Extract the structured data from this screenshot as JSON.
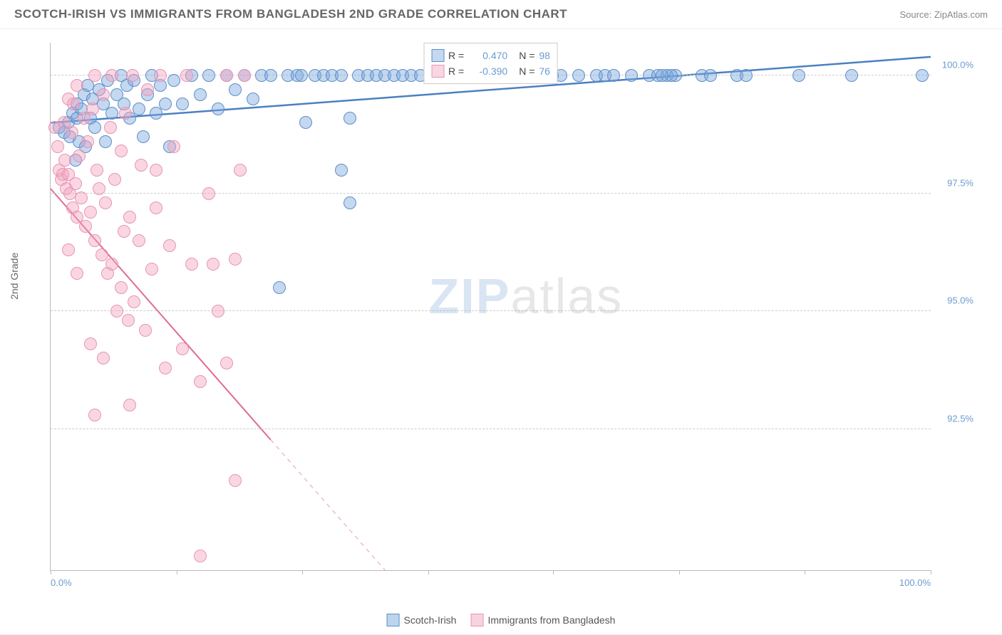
{
  "header": {
    "title": "SCOTCH-IRISH VS IMMIGRANTS FROM BANGLADESH 2ND GRADE CORRELATION CHART",
    "source_label": "Source: ZipAtlas.com"
  },
  "chart": {
    "type": "scatter",
    "ylabel": "2nd Grade",
    "xlim": [
      0,
      100
    ],
    "ylim": [
      89.5,
      100.7
    ],
    "xtick_positions": [
      0,
      14.3,
      28.6,
      42.9,
      57.1,
      71.4,
      85.7,
      100
    ],
    "xtick_labels_shown": {
      "0": "0.0%",
      "100": "100.0%"
    },
    "ytick_positions": [
      92.5,
      95.0,
      97.5,
      100.0
    ],
    "ytick_labels": [
      "92.5%",
      "95.0%",
      "97.5%",
      "100.0%"
    ],
    "background_color": "#ffffff",
    "grid_color": "#cccccc",
    "axis_color": "#bbbbbb",
    "label_color": "#6b9bd1",
    "point_radius": 9,
    "series": [
      {
        "name": "Scotch-Irish",
        "color_fill": "rgba(124,169,221,0.45)",
        "color_stroke": "#5f8ec7",
        "r_label": "R =",
        "r_value": "0.470",
        "n_label": "N =",
        "n_value": "98",
        "trend": {
          "x1": 0,
          "y1": 99.0,
          "x2": 100,
          "y2": 100.4,
          "dash_from_x": 100,
          "color": "#4b80c2",
          "width": 2.5
        },
        "points": [
          [
            1,
            98.9
          ],
          [
            1.5,
            98.8
          ],
          [
            2,
            99.0
          ],
          [
            2.2,
            98.7
          ],
          [
            2.5,
            99.2
          ],
          [
            2.8,
            98.2
          ],
          [
            3,
            99.1
          ],
          [
            3,
            99.4
          ],
          [
            3.2,
            98.6
          ],
          [
            3.5,
            99.3
          ],
          [
            3.8,
            99.6
          ],
          [
            4,
            98.5
          ],
          [
            4.2,
            99.8
          ],
          [
            4.5,
            99.1
          ],
          [
            4.8,
            99.5
          ],
          [
            5,
            98.9
          ],
          [
            5.5,
            99.7
          ],
          [
            6,
            99.4
          ],
          [
            6.2,
            98.6
          ],
          [
            6.5,
            99.9
          ],
          [
            7,
            99.2
          ],
          [
            7.5,
            99.6
          ],
          [
            8,
            100.0
          ],
          [
            8.3,
            99.4
          ],
          [
            8.7,
            99.8
          ],
          [
            9,
            99.1
          ],
          [
            9.5,
            99.9
          ],
          [
            10,
            99.3
          ],
          [
            10.5,
            98.7
          ],
          [
            11,
            99.6
          ],
          [
            11.5,
            100.0
          ],
          [
            12,
            99.2
          ],
          [
            12.5,
            99.8
          ],
          [
            13,
            99.4
          ],
          [
            13.5,
            98.5
          ],
          [
            14,
            99.9
          ],
          [
            15,
            99.4
          ],
          [
            16,
            100.0
          ],
          [
            17,
            99.6
          ],
          [
            18,
            100.0
          ],
          [
            19,
            99.3
          ],
          [
            20,
            100.0
          ],
          [
            21,
            99.7
          ],
          [
            22,
            100.0
          ],
          [
            23,
            99.5
          ],
          [
            24,
            100.0
          ],
          [
            26,
            95.5
          ],
          [
            25,
            100.0
          ],
          [
            27,
            100.0
          ],
          [
            28,
            100.0
          ],
          [
            29,
            99.0
          ],
          [
            30,
            100.0
          ],
          [
            31,
            100.0
          ],
          [
            32,
            100.0
          ],
          [
            33,
            100.0
          ],
          [
            34,
            99.1
          ],
          [
            34,
            97.3
          ],
          [
            35,
            100.0
          ],
          [
            36,
            100.0
          ],
          [
            37,
            100.0
          ],
          [
            38,
            100.0
          ],
          [
            33,
            98.0
          ],
          [
            39,
            100.0
          ],
          [
            40,
            100.0
          ],
          [
            41,
            100.0
          ],
          [
            42,
            100.0
          ],
          [
            44,
            100.0
          ],
          [
            46,
            100.0
          ],
          [
            47,
            100.0
          ],
          [
            48,
            100.0
          ],
          [
            49,
            100.0
          ],
          [
            50,
            100.0
          ],
          [
            51,
            100.0
          ],
          [
            52,
            100.0
          ],
          [
            54,
            100.0
          ],
          [
            55,
            100.0
          ],
          [
            56,
            100.0
          ],
          [
            57,
            100.0
          ],
          [
            58,
            100.0
          ],
          [
            60,
            100.0
          ],
          [
            62,
            100.0
          ],
          [
            63,
            100.0
          ],
          [
            64,
            100.0
          ],
          [
            66,
            100.0
          ],
          [
            68,
            100.0
          ],
          [
            69,
            100.0
          ],
          [
            70,
            100.0
          ],
          [
            71,
            100.0
          ],
          [
            74,
            100.0
          ],
          [
            75,
            100.0
          ],
          [
            78,
            100.0
          ],
          [
            79,
            100.0
          ],
          [
            85,
            100.0
          ],
          [
            91,
            100.0
          ],
          [
            70.5,
            100.0
          ],
          [
            69.5,
            100.0
          ],
          [
            99,
            100.0
          ],
          [
            28.5,
            100.0
          ]
        ]
      },
      {
        "name": "Immigrants from Bangladesh",
        "color_fill": "rgba(244,165,192,0.45)",
        "color_stroke": "#e695b2",
        "r_label": "R =",
        "r_value": "-0.390",
        "n_label": "N =",
        "n_value": "76",
        "trend": {
          "x1": 0,
          "y1": 97.6,
          "x2": 38,
          "y2": 89.5,
          "dash_from_x": 25,
          "color": "#e06b94",
          "width": 2
        },
        "points": [
          [
            0.5,
            98.9
          ],
          [
            0.8,
            98.5
          ],
          [
            1,
            98.0
          ],
          [
            1.2,
            97.8
          ],
          [
            1.4,
            97.9
          ],
          [
            1.5,
            99.0
          ],
          [
            1.6,
            98.2
          ],
          [
            1.8,
            97.6
          ],
          [
            2,
            97.9
          ],
          [
            2,
            99.5
          ],
          [
            2.2,
            97.5
          ],
          [
            2.4,
            98.8
          ],
          [
            2.5,
            97.2
          ],
          [
            2.6,
            99.4
          ],
          [
            2.8,
            97.7
          ],
          [
            3,
            99.8
          ],
          [
            3,
            97.0
          ],
          [
            3.2,
            98.3
          ],
          [
            3.5,
            97.4
          ],
          [
            3.8,
            99.1
          ],
          [
            4,
            96.8
          ],
          [
            4.2,
            98.6
          ],
          [
            4.5,
            97.1
          ],
          [
            4.8,
            99.3
          ],
          [
            5,
            96.5
          ],
          [
            5,
            100.0
          ],
          [
            5.3,
            98.0
          ],
          [
            5.5,
            97.6
          ],
          [
            5.8,
            96.2
          ],
          [
            6,
            99.6
          ],
          [
            6.2,
            97.3
          ],
          [
            6.5,
            95.8
          ],
          [
            6.8,
            98.9
          ],
          [
            7,
            96.0
          ],
          [
            7,
            100.0
          ],
          [
            7.3,
            97.8
          ],
          [
            7.5,
            95.0
          ],
          [
            8,
            98.4
          ],
          [
            8,
            95.5
          ],
          [
            8.3,
            96.7
          ],
          [
            8.5,
            99.2
          ],
          [
            8.8,
            94.8
          ],
          [
            9,
            97.0
          ],
          [
            9.3,
            100.0
          ],
          [
            9.5,
            95.2
          ],
          [
            10,
            96.5
          ],
          [
            10.3,
            98.1
          ],
          [
            10.8,
            94.6
          ],
          [
            11,
            99.7
          ],
          [
            11.5,
            95.9
          ],
          [
            12,
            97.2
          ],
          [
            12.5,
            100.0
          ],
          [
            13,
            93.8
          ],
          [
            13.5,
            96.4
          ],
          [
            14,
            98.5
          ],
          [
            15,
            94.2
          ],
          [
            15.5,
            100.0
          ],
          [
            16,
            96.0
          ],
          [
            17,
            93.5
          ],
          [
            18,
            97.5
          ],
          [
            18.5,
            96.0
          ],
          [
            19,
            95.0
          ],
          [
            20,
            93.9
          ],
          [
            20,
            100.0
          ],
          [
            21,
            91.4
          ],
          [
            22,
            100.0
          ],
          [
            21.5,
            98.0
          ],
          [
            21,
            96.1
          ],
          [
            17,
            89.8
          ],
          [
            9,
            93.0
          ],
          [
            5,
            92.8
          ],
          [
            4.5,
            94.3
          ],
          [
            6,
            94.0
          ],
          [
            3,
            95.8
          ],
          [
            2,
            96.3
          ],
          [
            12,
            98.0
          ]
        ]
      }
    ]
  },
  "watermark": {
    "part1": "ZIP",
    "part2": "atlas"
  },
  "legend_bottom": [
    {
      "label": "Scotch-Irish",
      "fill": "rgba(124,169,221,0.5)",
      "stroke": "#5f8ec7"
    },
    {
      "label": "Immigrants from Bangladesh",
      "fill": "rgba(244,165,192,0.5)",
      "stroke": "#e695b2"
    }
  ]
}
